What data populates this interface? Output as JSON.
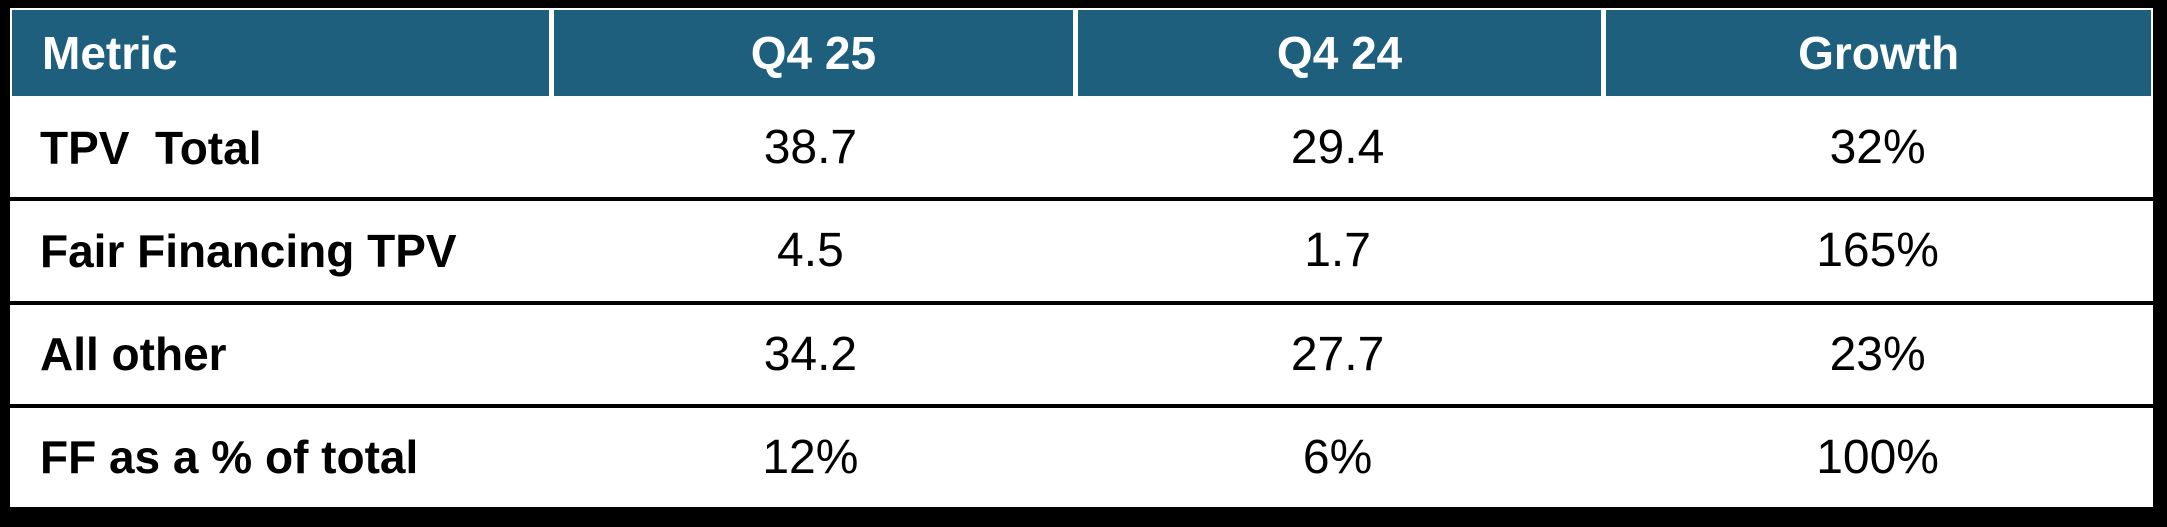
{
  "chart_data": {
    "type": "table",
    "title": "",
    "columns": [
      "Metric",
      "Q4 25",
      "Q4 24",
      "Growth"
    ],
    "rows": [
      {
        "metric": "TPV  Total",
        "q4_25": "38.7",
        "q4_24": "29.4",
        "growth": "32%"
      },
      {
        "metric": "Fair Financing TPV",
        "q4_25": "4.5",
        "q4_24": "1.7",
        "growth": "165%"
      },
      {
        "metric": "All other",
        "q4_25": "34.2",
        "q4_24": "27.7",
        "growth": "23%"
      },
      {
        "metric": "FF as a % of total",
        "q4_25": "12%",
        "q4_24": "6%",
        "growth": "100%"
      }
    ],
    "colors": {
      "header_bg": "#1d5f7d",
      "header_text": "#ffffff",
      "body_bg": "#ffffff",
      "body_text": "#000000",
      "frame_border": "#000000",
      "header_divider": "#ffffff",
      "row_divider": "#000000"
    },
    "layout": {
      "header_alignment": [
        "left",
        "center",
        "center",
        "center"
      ],
      "body_alignment": [
        "left",
        "center",
        "center",
        "center"
      ],
      "vertical_dividers_in_body": false
    }
  }
}
